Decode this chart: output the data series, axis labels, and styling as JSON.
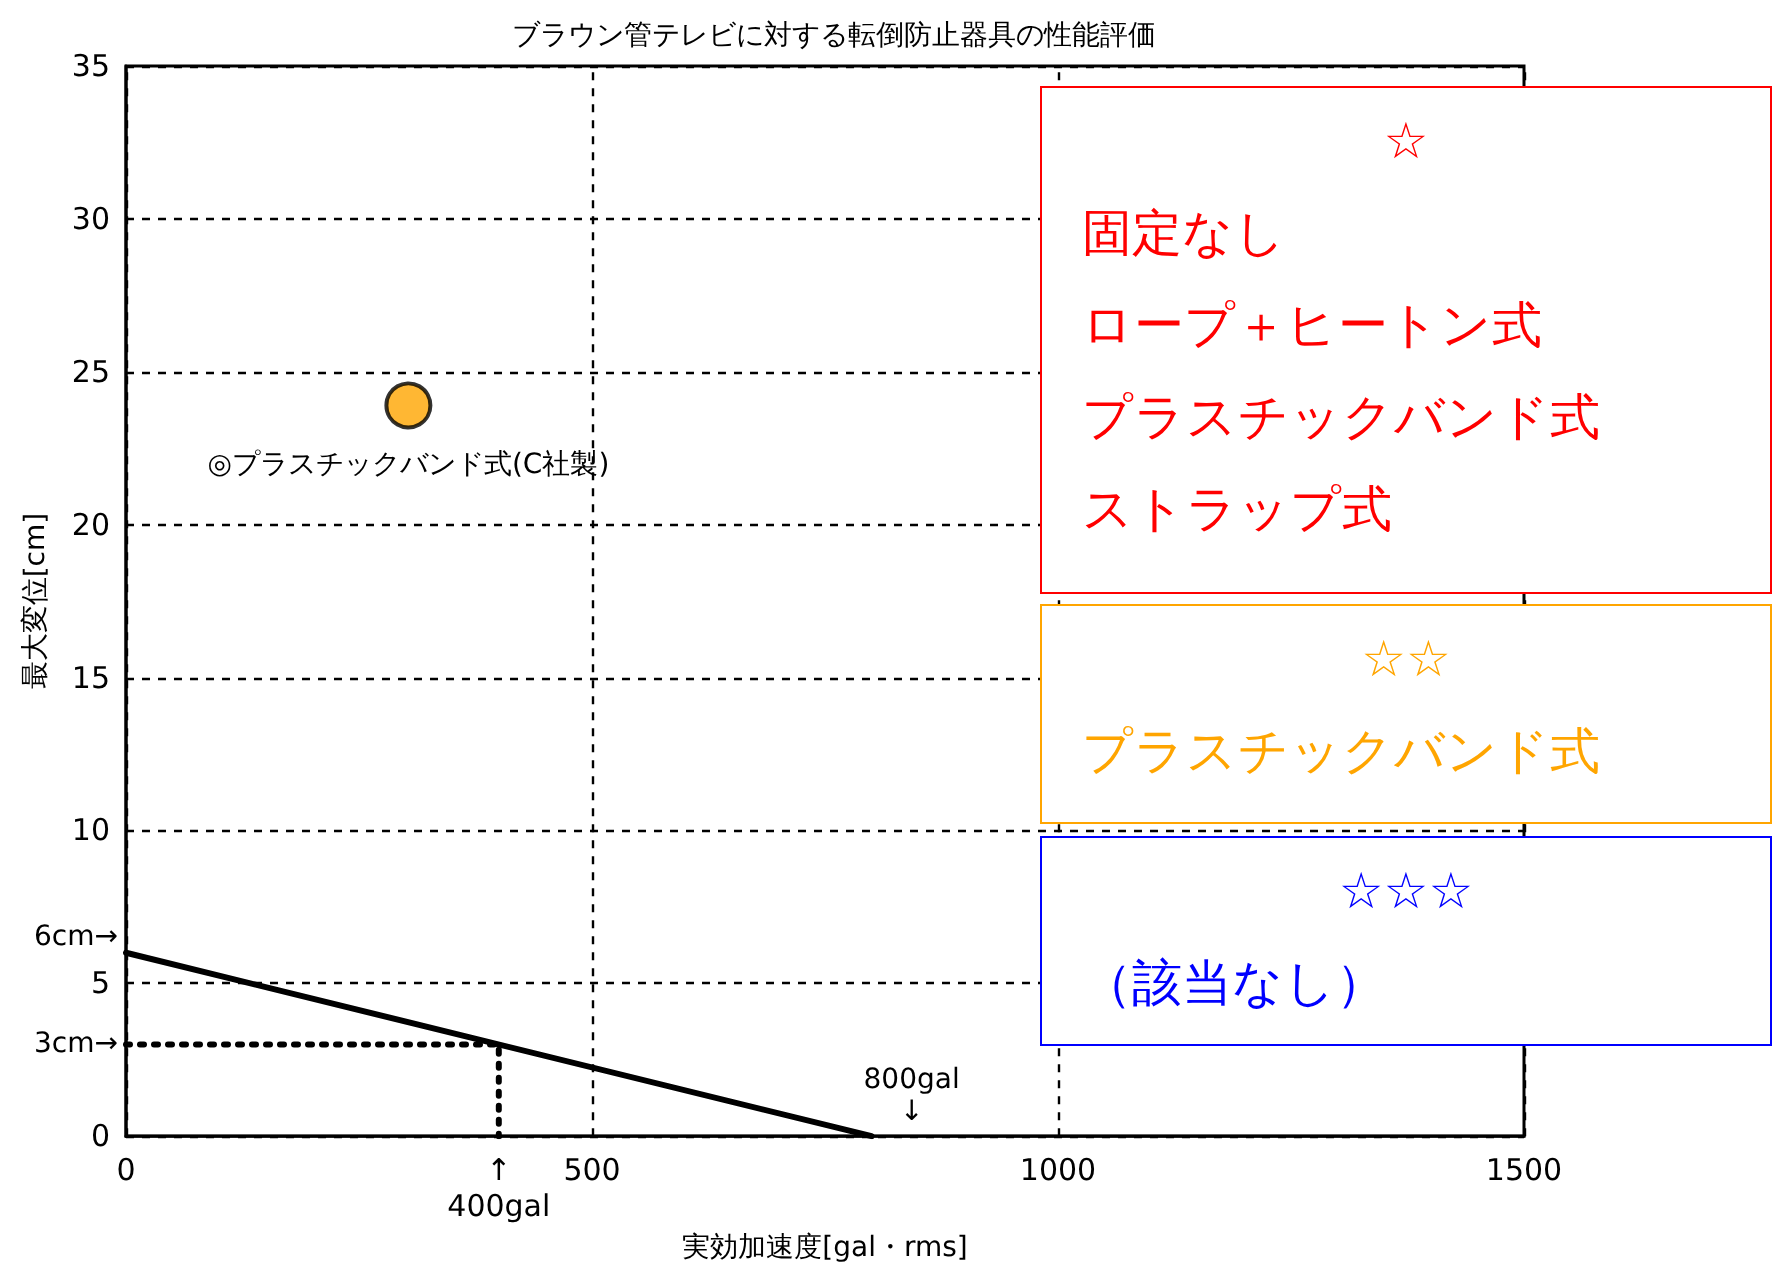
{
  "chart_data": {
    "type": "scatter",
    "title": "ブラウン管テレビに対する転倒防止器具の性能評価",
    "xlabel": "実効加速度[gal・rms]",
    "ylabel": "最大変位[cm]",
    "xlim": [
      0,
      1500
    ],
    "xticks": [
      0,
      {
        "value": 400,
        "label": "↑\n400gal"
      },
      500,
      1000,
      1500
    ],
    "ylim": [
      0,
      35
    ],
    "yticks": [
      0,
      5,
      10,
      15,
      20,
      25,
      30,
      35
    ],
    "grid": true,
    "series": [
      {
        "color": "#ffa500",
        "marker": "circle",
        "x": [
          303
        ],
        "values": [
          23.9
        ]
      },
      {
        "type": "line",
        "color": "#000000",
        "marker": "none",
        "line_style": "solid",
        "x": [
          0,
          800
        ],
        "values": [
          6,
          0
        ]
      },
      {
        "type": "line",
        "color": "#000000",
        "marker": "none",
        "line_style": "dotted",
        "x": [
          0,
          400,
          400
        ],
        "values": [
          3,
          3,
          0
        ]
      }
    ],
    "annotations": [
      {
        "text": "◎プラスチックバンド式(C社製)",
        "x": 303,
        "y": 23.9
      },
      {
        "text": "6cm→",
        "x": 0,
        "y": 6
      },
      {
        "text": "3cm→",
        "x": 0,
        "y": 3
      },
      {
        "text": "800gal\n↓",
        "x": 800,
        "y": 0
      },
      "☆",
      "固定なし",
      "ロープ＋ヒートン式",
      "プラスチックバンド式",
      "ストラップ式",
      "☆☆",
      "プラスチックバンド式",
      "☆☆☆",
      "（該当なし）"
    ]
  }
}
